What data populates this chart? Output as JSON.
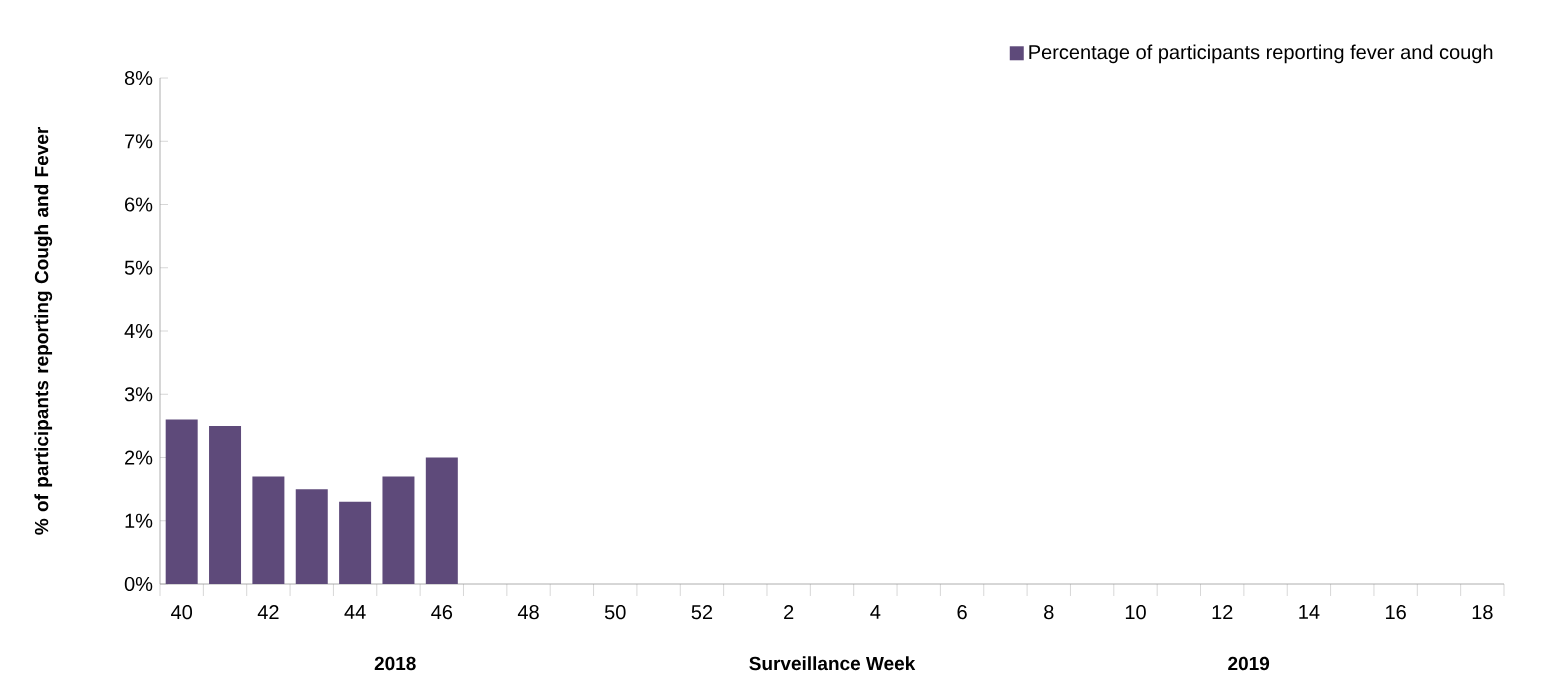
{
  "chart_data": {
    "type": "bar",
    "xlabel": "Surveillance Week",
    "ylabel": "% of participants reporting Cough and Fever",
    "categories": [
      "40",
      null,
      "42",
      null,
      "44",
      null,
      "46",
      null,
      "48",
      null,
      "50",
      null,
      "52",
      null,
      "2",
      null,
      "4",
      null,
      "6",
      null,
      "8",
      null,
      "10",
      null,
      "12",
      null,
      "14",
      null,
      "16",
      null,
      "18"
    ],
    "series": [
      {
        "name": "Percentage of participants reporting fever and cough",
        "color": "#5e4a7a",
        "values": [
          2.6,
          2.5,
          1.7,
          1.5,
          1.3,
          1.7,
          2.0,
          null,
          null,
          null,
          null,
          null,
          null,
          null,
          null,
          null,
          null,
          null,
          null,
          null,
          null,
          null,
          null,
          null,
          null,
          null,
          null,
          null,
          null,
          null,
          null
        ]
      }
    ],
    "ylim": [
      0,
      8
    ],
    "yticks": [
      {
        "value": 0,
        "label": "0%"
      },
      {
        "value": 1,
        "label": "1%"
      },
      {
        "value": 2,
        "label": "2%"
      },
      {
        "value": 3,
        "label": "3%"
      },
      {
        "value": 4,
        "label": "4%"
      },
      {
        "value": 5,
        "label": "5%"
      },
      {
        "value": 6,
        "label": "6%"
      },
      {
        "value": 7,
        "label": "7%"
      },
      {
        "value": 8,
        "label": "8%"
      }
    ],
    "annotations": [
      "2018",
      "2019"
    ],
    "legend": "top right",
    "grid": false
  }
}
